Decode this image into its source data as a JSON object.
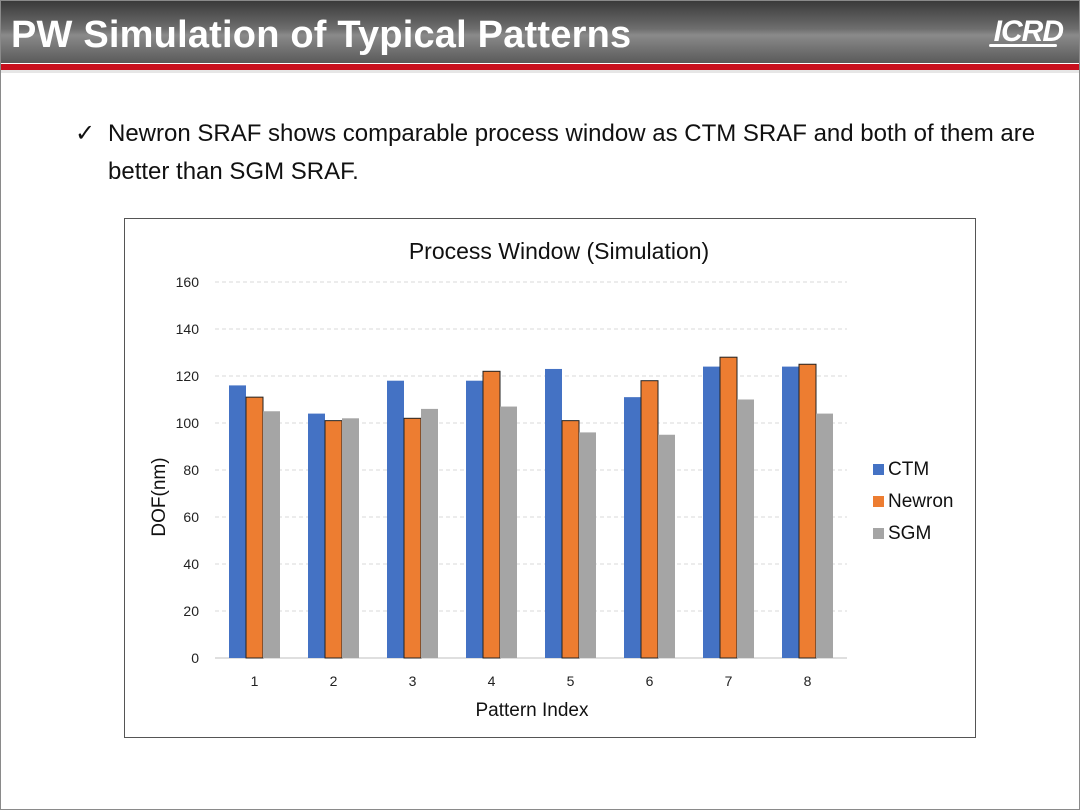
{
  "slide": {
    "title": "PW Simulation of Typical Patterns",
    "logo": "ICRD",
    "bullet_check": "✓",
    "bullet_text": "Newron SRAF shows comparable process window as CTM SRAF and both of them are better than SGM SRAF."
  },
  "colors": {
    "header_bg": "#5a5a5a",
    "accent_red": "#c8101e",
    "ctm": "#4472c4",
    "newron": "#ed7d31",
    "sgm": "#a5a5a5"
  },
  "chart_data": {
    "type": "bar",
    "title": "Process Window (Simulation)",
    "xlabel": "Pattern Index",
    "ylabel": "DOF(nm)",
    "categories": [
      "1",
      "2",
      "3",
      "4",
      "5",
      "6",
      "7",
      "8"
    ],
    "ylim": [
      0,
      160
    ],
    "yticks": [
      0,
      20,
      40,
      60,
      80,
      100,
      120,
      140,
      160
    ],
    "grid": true,
    "legend_position": "right",
    "series": [
      {
        "name": "CTM",
        "color": "#4472c4",
        "values": [
          116,
          104,
          118,
          118,
          123,
          111,
          124,
          124
        ]
      },
      {
        "name": "Newron",
        "color": "#ed7d31",
        "values": [
          111,
          101,
          102,
          122,
          101,
          118,
          128,
          125
        ]
      },
      {
        "name": "SGM",
        "color": "#a5a5a5",
        "values": [
          105,
          102,
          106,
          107,
          96,
          95,
          110,
          104
        ]
      }
    ]
  }
}
